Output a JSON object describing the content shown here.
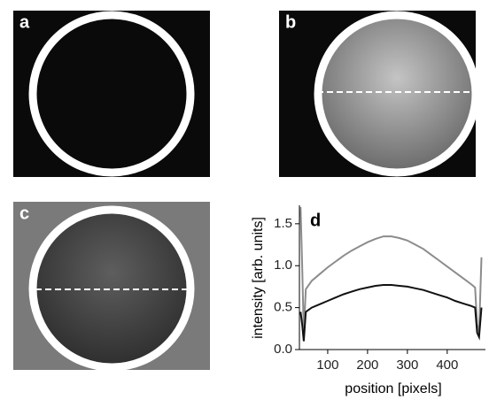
{
  "panels": [
    {
      "label": "a"
    },
    {
      "label": "b"
    },
    {
      "label": "c"
    }
  ],
  "chart_data": {
    "type": "line",
    "panel_label": "d",
    "x_label": "position [pixels]",
    "y_label": "intensity [arb. units]",
    "x": [
      32,
      36,
      40,
      45,
      60,
      80,
      100,
      120,
      140,
      160,
      180,
      200,
      220,
      240,
      260,
      280,
      300,
      320,
      340,
      360,
      380,
      400,
      420,
      440,
      460,
      470,
      475,
      480,
      486
    ],
    "series": [
      {
        "color": "#8c8c8c",
        "values": [
          1.7,
          1.0,
          0.2,
          0.72,
          0.82,
          0.9,
          0.98,
          1.05,
          1.12,
          1.18,
          1.23,
          1.28,
          1.32,
          1.35,
          1.35,
          1.33,
          1.3,
          1.25,
          1.2,
          1.13,
          1.06,
          0.99,
          0.92,
          0.85,
          0.78,
          0.74,
          0.3,
          0.2,
          1.1
        ]
      },
      {
        "color": "#111111",
        "values": [
          0.45,
          0.3,
          0.1,
          0.45,
          0.5,
          0.54,
          0.58,
          0.62,
          0.66,
          0.69,
          0.72,
          0.74,
          0.76,
          0.77,
          0.77,
          0.76,
          0.75,
          0.73,
          0.71,
          0.68,
          0.65,
          0.62,
          0.58,
          0.55,
          0.52,
          0.5,
          0.2,
          0.15,
          0.5
        ]
      }
    ],
    "xlim": [
      29,
      496
    ],
    "ylim": [
      0,
      1.72
    ],
    "xticks": [
      100,
      200,
      300,
      400
    ],
    "yticks": [
      {
        "value": 0,
        "label": "0.0"
      },
      0.5,
      {
        "value": 1,
        "label": "1.0"
      },
      1.5
    ]
  }
}
